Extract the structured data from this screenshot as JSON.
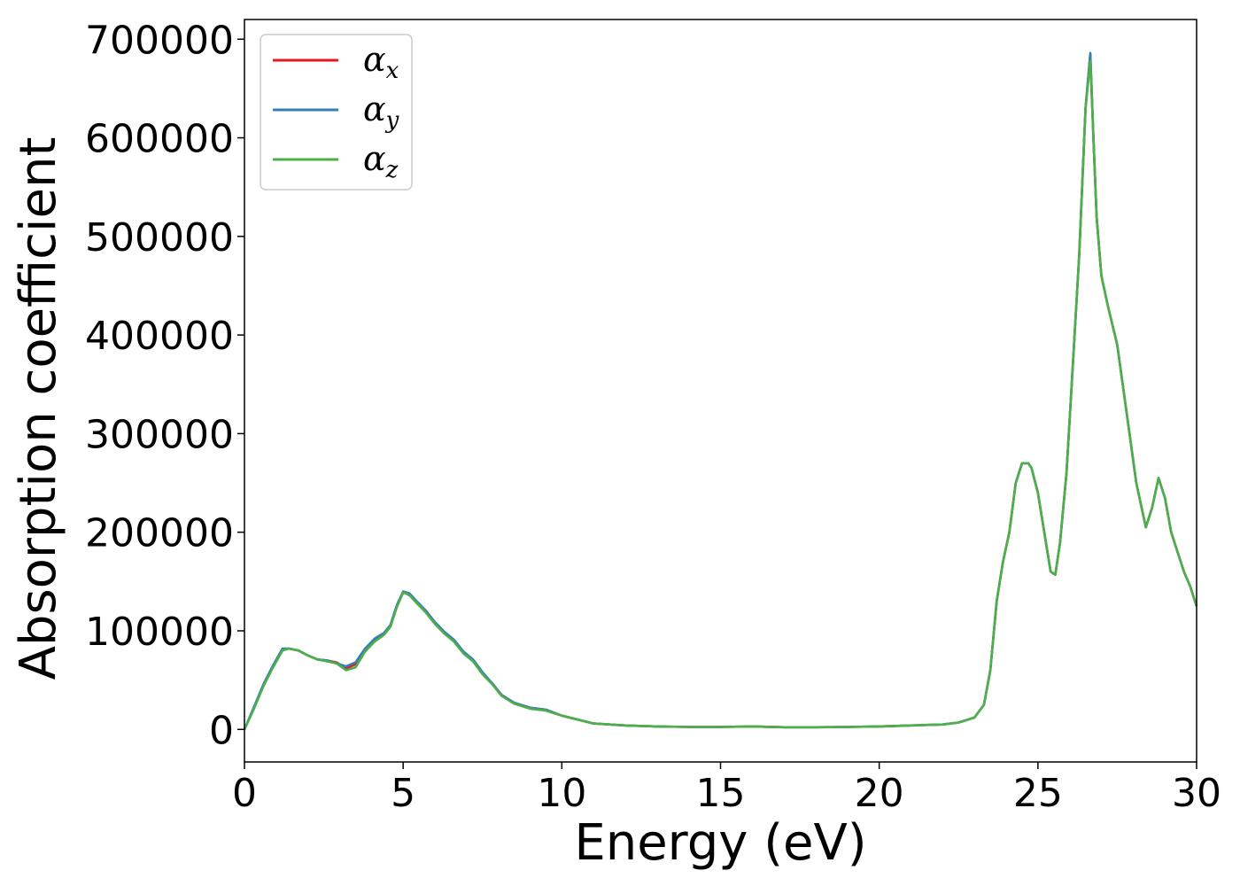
{
  "chart_data": {
    "type": "line",
    "xlabel": "Energy (eV)",
    "ylabel": "Absorption coefficient",
    "xlim": [
      0,
      30
    ],
    "ylim": [
      -33000,
      720000
    ],
    "xticks": [
      0,
      5,
      10,
      15,
      20,
      25,
      30
    ],
    "yticks": [
      0,
      100000,
      200000,
      300000,
      400000,
      500000,
      600000,
      700000
    ],
    "grid": false,
    "legend_position": "upper-left",
    "colors": {
      "alpha_x": "#e41a1c",
      "alpha_y": "#377eb8",
      "alpha_z": "#4daf4a"
    },
    "series": [
      {
        "name": "α",
        "subscript": "x",
        "color": "#e41a1c",
        "x": [
          0,
          0.3,
          0.6,
          0.9,
          1.2,
          1.4,
          1.7,
          2.0,
          2.3,
          2.6,
          2.9,
          3.2,
          3.5,
          3.8,
          4.1,
          4.4,
          4.6,
          4.8,
          5.0,
          5.2,
          5.4,
          5.7,
          6.0,
          6.3,
          6.6,
          6.9,
          7.2,
          7.5,
          7.8,
          8.1,
          8.5,
          9.0,
          9.5,
          10.0,
          11.0,
          12.0,
          13.0,
          14.0,
          15.0,
          16.0,
          17.0,
          18.0,
          19.0,
          20.0,
          21.0,
          22.0,
          22.5,
          23.0,
          23.3,
          23.5,
          23.7,
          23.9,
          24.1,
          24.3,
          24.5,
          24.7,
          24.8,
          25.0,
          25.2,
          25.4,
          25.55,
          25.7,
          25.9,
          26.1,
          26.3,
          26.5,
          26.65,
          26.75,
          26.85,
          27.0,
          27.2,
          27.5,
          27.8,
          28.1,
          28.4,
          28.6,
          28.8,
          29.0,
          29.2,
          29.4,
          29.6,
          29.8,
          30.0
        ],
        "y": [
          0,
          22000,
          45000,
          64000,
          81000,
          82000,
          80000,
          75000,
          71000,
          70000,
          68000,
          62000,
          66000,
          80000,
          90000,
          97000,
          105000,
          125000,
          139000,
          137000,
          130000,
          120000,
          108000,
          98000,
          90000,
          78000,
          70000,
          57000,
          47000,
          35000,
          27000,
          22000,
          20000,
          14000,
          6000,
          4000,
          3000,
          2500,
          2500,
          3000,
          2200,
          2200,
          2500,
          3000,
          4000,
          5000,
          7000,
          12000,
          25000,
          60000,
          130000,
          170000,
          200000,
          250000,
          270000,
          270000,
          265000,
          240000,
          200000,
          160000,
          157000,
          190000,
          260000,
          370000,
          480000,
          630000,
          685000,
          600000,
          520000,
          460000,
          430000,
          390000,
          320000,
          250000,
          205000,
          225000,
          255000,
          235000,
          200000,
          180000,
          160000,
          145000,
          125000
        ]
      },
      {
        "name": "α",
        "subscript": "y",
        "color": "#377eb8",
        "x": [
          0,
          0.3,
          0.6,
          0.9,
          1.2,
          1.4,
          1.7,
          2.0,
          2.3,
          2.6,
          2.9,
          3.2,
          3.5,
          3.8,
          4.1,
          4.4,
          4.6,
          4.8,
          5.0,
          5.2,
          5.4,
          5.7,
          6.0,
          6.3,
          6.6,
          6.9,
          7.2,
          7.5,
          7.8,
          8.1,
          8.5,
          9.0,
          9.5,
          10.0,
          11.0,
          12.0,
          13.0,
          14.0,
          15.0,
          16.0,
          17.0,
          18.0,
          19.0,
          20.0,
          21.0,
          22.0,
          22.5,
          23.0,
          23.3,
          23.5,
          23.7,
          23.9,
          24.1,
          24.3,
          24.5,
          24.7,
          24.8,
          25.0,
          25.2,
          25.4,
          25.55,
          25.7,
          25.9,
          26.1,
          26.3,
          26.5,
          26.65,
          26.75,
          26.85,
          27.0,
          27.2,
          27.5,
          27.8,
          28.1,
          28.4,
          28.6,
          28.8,
          29.0,
          29.2,
          29.4,
          29.6,
          29.8,
          30.0
        ],
        "y": [
          0,
          23000,
          46000,
          65000,
          82000,
          82000,
          80000,
          75000,
          71000,
          70000,
          67000,
          64000,
          68000,
          82000,
          92000,
          98000,
          106000,
          126000,
          140000,
          138000,
          131000,
          121000,
          109000,
          99000,
          91000,
          79000,
          71000,
          58000,
          47000,
          35000,
          27000,
          22000,
          20000,
          14000,
          6000,
          4000,
          3000,
          2500,
          2500,
          3000,
          2200,
          2200,
          2500,
          3000,
          4000,
          5000,
          7000,
          12000,
          25000,
          60000,
          130000,
          170000,
          200000,
          250000,
          270000,
          270000,
          265000,
          240000,
          200000,
          160000,
          157000,
          190000,
          260000,
          370000,
          480000,
          630000,
          686000,
          600000,
          520000,
          460000,
          430000,
          390000,
          320000,
          250000,
          205000,
          225000,
          255000,
          235000,
          200000,
          180000,
          160000,
          145000,
          125000
        ]
      },
      {
        "name": "α",
        "subscript": "z",
        "color": "#4daf4a",
        "x": [
          0,
          0.3,
          0.6,
          0.9,
          1.2,
          1.4,
          1.7,
          2.0,
          2.3,
          2.6,
          2.9,
          3.2,
          3.5,
          3.8,
          4.1,
          4.4,
          4.6,
          4.8,
          5.0,
          5.2,
          5.4,
          5.7,
          6.0,
          6.3,
          6.6,
          6.9,
          7.2,
          7.5,
          7.8,
          8.1,
          8.5,
          9.0,
          9.5,
          10.0,
          11.0,
          12.0,
          13.0,
          14.0,
          15.0,
          16.0,
          17.0,
          18.0,
          19.0,
          20.0,
          21.0,
          22.0,
          22.5,
          23.0,
          23.3,
          23.5,
          23.7,
          23.9,
          24.1,
          24.3,
          24.5,
          24.7,
          24.8,
          25.0,
          25.2,
          25.4,
          25.55,
          25.7,
          25.9,
          26.1,
          26.3,
          26.5,
          26.65,
          26.75,
          26.85,
          27.0,
          27.2,
          27.5,
          27.8,
          28.1,
          28.4,
          28.6,
          28.8,
          29.0,
          29.2,
          29.4,
          29.6,
          29.8,
          30.0
        ],
        "y": [
          0,
          21000,
          44000,
          63000,
          80000,
          82000,
          80000,
          75000,
          71000,
          69000,
          67000,
          60000,
          63000,
          79000,
          89000,
          96000,
          104000,
          124000,
          139000,
          136000,
          129000,
          119000,
          107000,
          97000,
          89000,
          77000,
          69000,
          56000,
          46000,
          34000,
          26000,
          21000,
          19000,
          14000,
          6000,
          4000,
          3000,
          2500,
          2500,
          3000,
          2200,
          2200,
          2500,
          3000,
          4000,
          5000,
          7000,
          12000,
          25000,
          60000,
          130000,
          170000,
          200000,
          250000,
          270000,
          270000,
          265000,
          240000,
          200000,
          160000,
          157000,
          190000,
          260000,
          370000,
          480000,
          630000,
          678000,
          600000,
          520000,
          460000,
          430000,
          390000,
          320000,
          250000,
          205000,
          225000,
          255000,
          235000,
          200000,
          180000,
          160000,
          145000,
          125000
        ]
      }
    ]
  }
}
